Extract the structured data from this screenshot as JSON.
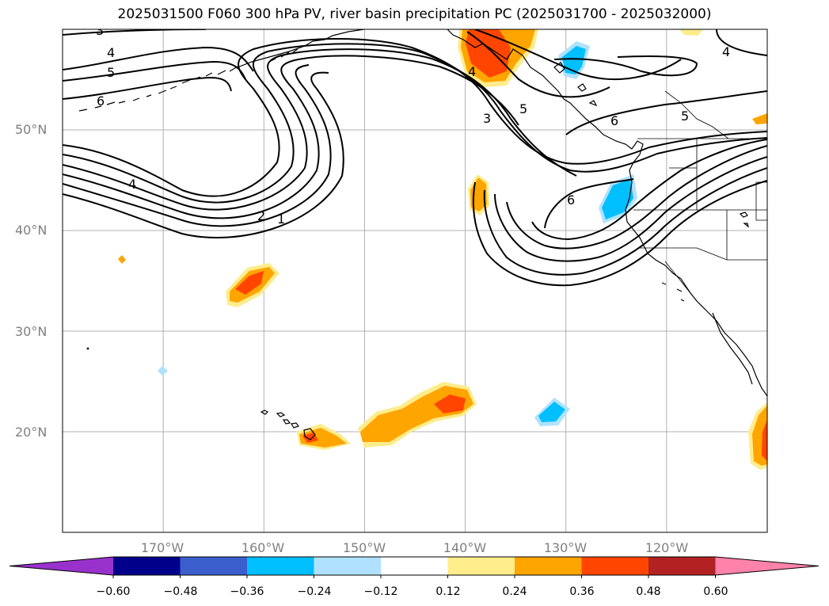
{
  "title": "2025031500 F060 300 hPa PV, river basin precipitation PC (2025031700 - 2025032000)",
  "map": {
    "lon_range": [
      -180,
      -110
    ],
    "lat_range": [
      10,
      60
    ],
    "lon_ticks": [
      {
        "value": -170,
        "label": "170°W"
      },
      {
        "value": -160,
        "label": "160°W"
      },
      {
        "value": -150,
        "label": "150°W"
      },
      {
        "value": -140,
        "label": "140°W"
      },
      {
        "value": -130,
        "label": "130°W"
      },
      {
        "value": -120,
        "label": "120°W"
      }
    ],
    "lat_ticks": [
      {
        "value": 50,
        "label": "50°N"
      },
      {
        "value": 40,
        "label": "40°N"
      },
      {
        "value": 30,
        "label": "30°N"
      },
      {
        "value": 20,
        "label": "20°N"
      }
    ],
    "grid": true,
    "pv_contour_labels": [
      "3",
      "4",
      "5",
      "6",
      "4",
      "2",
      "1",
      "4",
      "3",
      "5",
      "6",
      "6",
      "4",
      "5"
    ]
  },
  "colorbar": {
    "ticks": [
      "−0.60",
      "−0.48",
      "−0.36",
      "−0.24",
      "−0.12",
      "0.12",
      "0.24",
      "0.36",
      "0.48",
      "0.60"
    ],
    "colors": {
      "under": "#9932cc",
      "c1": "#00008b",
      "c2": "#3a5fcd",
      "c3": "#00bfff",
      "c4": "#b0e2ff",
      "c5": "#ffffff",
      "c6": "#ffec8b",
      "c7": "#ffa500",
      "c8": "#ff4500",
      "c9": "#b22222",
      "over": "#ff82ab"
    }
  }
}
